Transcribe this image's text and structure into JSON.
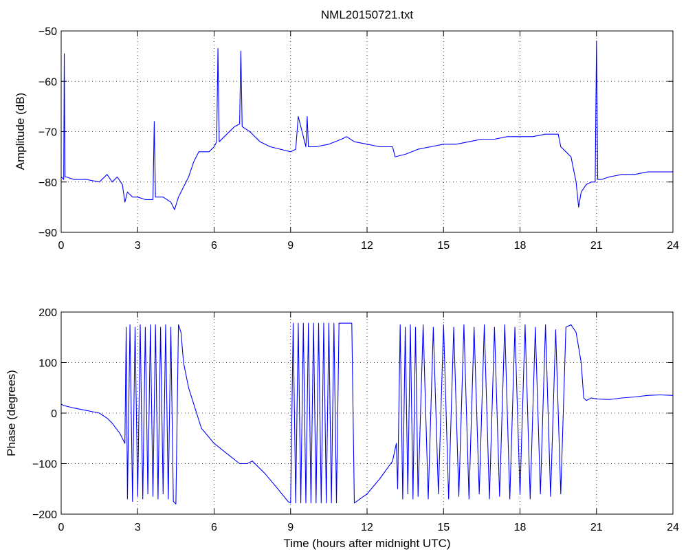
{
  "window": {
    "title": "NML20150721.txt"
  },
  "chart_data": [
    {
      "type": "line",
      "title": "NML20150721.txt",
      "xlabel": "",
      "ylabel": "Amplitude (dB)",
      "xlim": [
        0,
        24
      ],
      "ylim": [
        -90,
        -50
      ],
      "xticks": [
        0,
        3,
        6,
        9,
        12,
        15,
        18,
        21,
        24
      ],
      "xtick_labels": [
        "0",
        "3",
        "6",
        "9",
        "12",
        "15",
        "18",
        "21",
        "24"
      ],
      "yticks": [
        -90,
        -80,
        -70,
        -60,
        -50
      ],
      "ytick_labels": [
        "−90",
        "−80",
        "−70",
        "−60",
        "−50"
      ],
      "grid": true,
      "line_color": "#0000ff",
      "series": [
        {
          "x": [
            0,
            0.1,
            0.12,
            0.15,
            0.2,
            0.5,
            1.0,
            1.5,
            1.8,
            2.0,
            2.2,
            2.4,
            2.5,
            2.6,
            2.8,
            3.0,
            3.3,
            3.6,
            3.65,
            3.7,
            4.0,
            4.3,
            4.45,
            4.6,
            4.8,
            5.0,
            5.2,
            5.4,
            5.8,
            6.0,
            6.1,
            6.15,
            6.2,
            6.5,
            6.8,
            7.0,
            7.05,
            7.1,
            7.4,
            7.8,
            8.2,
            8.6,
            9.0,
            9.2,
            9.3,
            9.6,
            9.65,
            9.7,
            10.0,
            10.5,
            11.0,
            11.2,
            11.5,
            12.0,
            12.5,
            13.0,
            13.1,
            13.5,
            14.0,
            14.5,
            15.0,
            15.5,
            16.0,
            16.5,
            17.0,
            17.5,
            18.0,
            18.5,
            19.0,
            19.5,
            19.6,
            19.8,
            20.0,
            20.2,
            20.3,
            20.4,
            20.6,
            20.8,
            20.95,
            21.0,
            21.05,
            21.2,
            21.5,
            22.0,
            22.5,
            23.0,
            23.5,
            24.0
          ],
          "y": [
            -79,
            -79.5,
            -54.5,
            -79,
            -79,
            -79.5,
            -79.5,
            -80,
            -78.5,
            -80,
            -79,
            -80.5,
            -84,
            -82,
            -83,
            -83,
            -83.5,
            -83.5,
            -68,
            -83,
            -83,
            -84,
            -85.5,
            -83,
            -81,
            -79,
            -76,
            -74,
            -74,
            -73,
            -72,
            -53.5,
            -72,
            -70.5,
            -69,
            -68.5,
            -54,
            -69,
            -70,
            -72,
            -73,
            -73.5,
            -74,
            -73.5,
            -67,
            -73,
            -67,
            -73,
            -73,
            -72.5,
            -71.5,
            -71,
            -72,
            -72.5,
            -73,
            -73,
            -75,
            -74.5,
            -73.5,
            -73,
            -72.5,
            -72.5,
            -72,
            -71.5,
            -71.5,
            -71,
            -71,
            -71,
            -70.5,
            -70.5,
            -73,
            -74,
            -75,
            -80,
            -85,
            -82,
            -80.5,
            -80,
            -80,
            -52,
            -79.5,
            -79.5,
            -79,
            -78.5,
            -78.5,
            -78,
            -78,
            -78
          ]
        }
      ]
    },
    {
      "type": "line",
      "title": "",
      "xlabel": "Time (hours after midnight UTC)",
      "ylabel": "Phase (degrees)",
      "xlim": [
        0,
        24
      ],
      "ylim": [
        -200,
        200
      ],
      "xticks": [
        0,
        3,
        6,
        9,
        12,
        15,
        18,
        21,
        24
      ],
      "xtick_labels": [
        "0",
        "3",
        "6",
        "9",
        "12",
        "15",
        "18",
        "21",
        "24"
      ],
      "yticks": [
        -200,
        -100,
        0,
        100,
        200
      ],
      "ytick_labels": [
        "−200",
        "−100",
        "0",
        "100",
        "200"
      ],
      "grid": true,
      "line_color": "#0000ff",
      "series": [
        {
          "x": [
            0,
            0.1,
            0.5,
            1.0,
            1.5,
            1.8,
            2.0,
            2.3,
            2.5,
            2.55,
            2.6,
            2.7,
            2.8,
            2.9,
            3.0,
            3.1,
            3.2,
            3.3,
            3.4,
            3.5,
            3.6,
            3.7,
            3.8,
            3.9,
            4.0,
            4.1,
            4.2,
            4.3,
            4.4,
            4.5,
            4.6,
            4.7,
            4.8,
            5.0,
            5.5,
            6.0,
            6.5,
            7.0,
            7.3,
            7.5,
            8.0,
            8.5,
            8.9,
            9.0,
            9.1,
            9.2,
            9.3,
            9.4,
            9.5,
            9.6,
            9.7,
            9.8,
            9.9,
            10.0,
            10.1,
            10.2,
            10.3,
            10.4,
            10.5,
            10.6,
            10.7,
            10.8,
            10.9,
            11.0,
            11.2,
            11.4,
            11.5,
            12.0,
            12.5,
            13.0,
            13.15,
            13.2,
            13.3,
            13.4,
            13.5,
            13.6,
            13.7,
            13.8,
            13.9,
            14.0,
            14.2,
            14.4,
            14.6,
            14.8,
            15.0,
            15.2,
            15.4,
            15.6,
            15.8,
            16.0,
            16.2,
            16.4,
            16.6,
            16.8,
            17.0,
            17.2,
            17.4,
            17.6,
            17.8,
            18.0,
            18.2,
            18.4,
            18.6,
            18.8,
            19.0,
            19.2,
            19.4,
            19.6,
            19.8,
            20.0,
            20.2,
            20.4,
            20.5,
            20.6,
            20.8,
            21.0,
            21.5,
            22.0,
            22.5,
            23.0,
            23.5,
            24.0
          ],
          "y": [
            18,
            15,
            10,
            5,
            0,
            -10,
            -20,
            -40,
            -60,
            170,
            -170,
            175,
            -175,
            170,
            -165,
            175,
            -170,
            170,
            -160,
            175,
            -165,
            175,
            -170,
            170,
            -160,
            175,
            -170,
            170,
            -175,
            -180,
            175,
            160,
            100,
            50,
            -30,
            -60,
            -80,
            -100,
            -100,
            -95,
            -120,
            -150,
            -175,
            -178,
            178,
            -178,
            178,
            -178,
            178,
            -178,
            178,
            -178,
            178,
            -178,
            178,
            -178,
            178,
            -178,
            178,
            -178,
            178,
            -178,
            178,
            178,
            178,
            178,
            -178,
            -160,
            -130,
            -95,
            -60,
            -150,
            175,
            -170,
            170,
            -160,
            175,
            -170,
            170,
            -165,
            175,
            -170,
            170,
            -160,
            175,
            -170,
            170,
            -165,
            175,
            -170,
            170,
            -160,
            175,
            -170,
            170,
            -165,
            175,
            -170,
            170,
            -160,
            175,
            -170,
            170,
            -160,
            175,
            -165,
            165,
            -160,
            170,
            175,
            160,
            100,
            30,
            25,
            30,
            28,
            27,
            30,
            32,
            35,
            36,
            35
          ]
        }
      ]
    }
  ]
}
